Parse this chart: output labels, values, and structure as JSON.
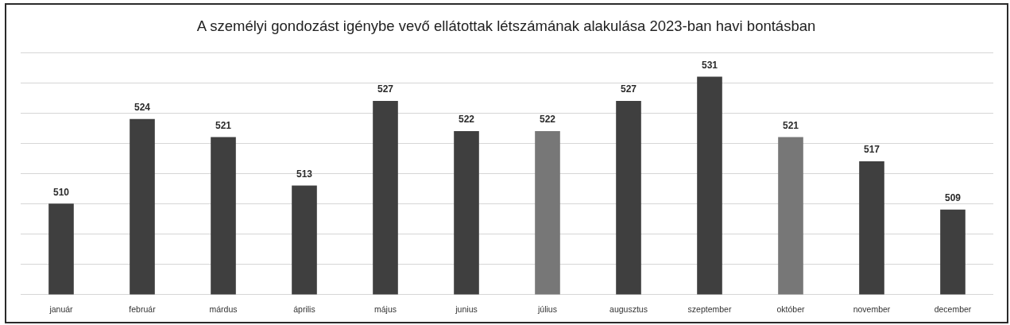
{
  "chart_data": {
    "type": "bar",
    "title": "A személyi gondozást igénybe vevő ellátottak létszámának alakulása 2023-ban havi bontásban",
    "categories": [
      "január",
      "február",
      "márdus",
      "április",
      "május",
      "junius",
      "július",
      "augusztus",
      "szeptember",
      "október",
      "november",
      "december"
    ],
    "values": [
      510,
      524,
      521,
      513,
      527,
      522,
      522,
      527,
      531,
      521,
      517,
      509
    ],
    "colors": [
      "#3f3f3f",
      "#3f3f3f",
      "#3f3f3f",
      "#3f3f3f",
      "#3f3f3f",
      "#3f3f3f",
      "#777777",
      "#3f3f3f",
      "#3f3f3f",
      "#777777",
      "#3f3f3f",
      "#3f3f3f"
    ],
    "ylim": [
      495,
      535
    ],
    "yticks": [
      {
        "value": 495,
        "label": null
      },
      {
        "value": 500,
        "label": null
      },
      {
        "value": 505,
        "label": null
      },
      {
        "value": 510,
        "label": null
      },
      {
        "value": 515,
        "label": null
      },
      {
        "value": 520,
        "label": null
      },
      {
        "value": 525,
        "label": null
      },
      {
        "value": 530,
        "label": null
      },
      {
        "value": 535,
        "label": null
      }
    ],
    "tick_labels": "x",
    "grid": "y",
    "data_labels": true
  }
}
